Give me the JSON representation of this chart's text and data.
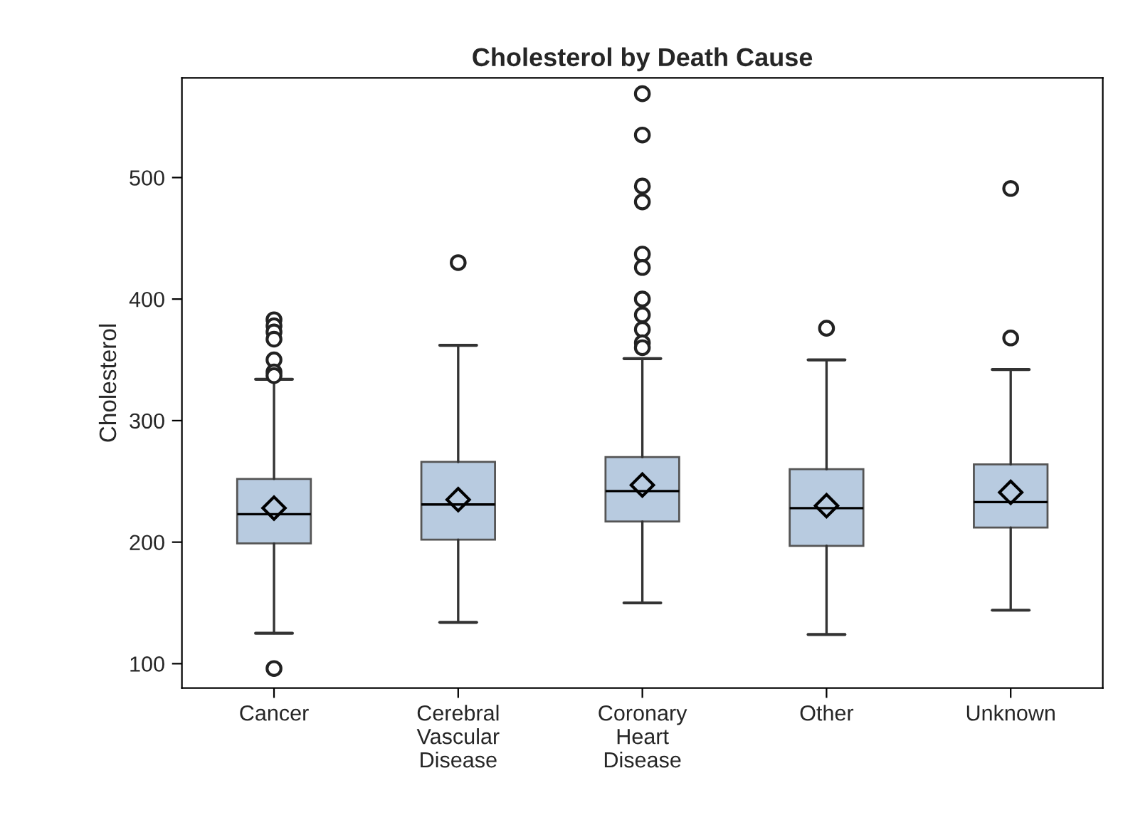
{
  "chart_data": {
    "type": "box",
    "title": "Cholesterol by Death Cause",
    "ylabel": "Cholesterol",
    "categories": [
      "Cancer",
      "Cerebral\nVascular\nDisease",
      "Coronary\nHeart\nDisease",
      "Other",
      "Unknown"
    ],
    "color": "#b8cbe0",
    "boxes": [
      {
        "low": 125,
        "q1": 199,
        "median": 223,
        "q3": 252,
        "high": 334,
        "mean": 228,
        "outliers": [
          383,
          378,
          373,
          367,
          350,
          340,
          337,
          96
        ]
      },
      {
        "low": 134,
        "q1": 202,
        "median": 231,
        "q3": 266,
        "high": 362,
        "mean": 235,
        "outliers": [
          430
        ]
      },
      {
        "low": 150,
        "q1": 217,
        "median": 242,
        "q3": 270,
        "high": 351,
        "mean": 247,
        "outliers": [
          569,
          535,
          493,
          480,
          437,
          426,
          400,
          387,
          375,
          364,
          360
        ]
      },
      {
        "low": 124,
        "q1": 197,
        "median": 228,
        "q3": 260,
        "high": 350,
        "mean": 230,
        "outliers": [
          376
        ]
      },
      {
        "low": 144,
        "q1": 212,
        "median": 233,
        "q3": 264,
        "high": 342,
        "mean": 241,
        "outliers": [
          491,
          368
        ]
      }
    ],
    "ylim": [
      80,
      582
    ],
    "yticks": [
      100,
      200,
      300,
      400,
      500
    ]
  }
}
